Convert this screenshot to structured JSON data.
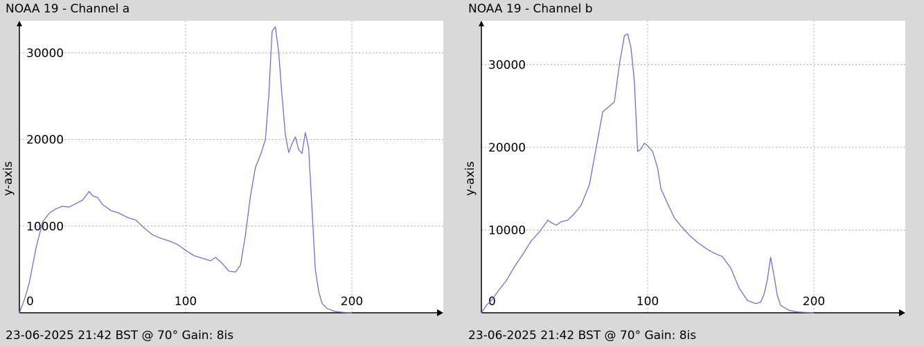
{
  "chart_data": [
    {
      "type": "line",
      "title": "NOAA 19 - Channel a",
      "footer": "23-06-2025 21:42 BST @ 70° Gain: 8",
      "footer_suffix": "is",
      "ylabel": "y-axis",
      "xlabel": "",
      "xlim": [
        0,
        255
      ],
      "ylim": [
        0,
        33700
      ],
      "grid": true,
      "xticks": [
        0,
        100,
        200
      ],
      "yticks": [
        10000,
        20000,
        30000
      ],
      "xtick_labels": [
        "0",
        "100",
        "200"
      ],
      "ytick_labels": [
        "10000",
        "20000",
        "30000"
      ],
      "color": "#6f6fd8",
      "series": [
        {
          "x": [
            0,
            3,
            6,
            10,
            14,
            18,
            22,
            26,
            30,
            34,
            38,
            42,
            44,
            47,
            50,
            55,
            60,
            65,
            70,
            75,
            80,
            85,
            90,
            95,
            100,
            105,
            110,
            115,
            118,
            122,
            126,
            130,
            133,
            136,
            139,
            142,
            145,
            148,
            150,
            152,
            154,
            156,
            158,
            160,
            162,
            164,
            166,
            168,
            170,
            172,
            174,
            176,
            178,
            180,
            182,
            185,
            190,
            195,
            200
          ],
          "y": [
            0,
            1500,
            3500,
            7500,
            10500,
            11500,
            12000,
            12300,
            12200,
            12600,
            13000,
            14000,
            13500,
            13300,
            12500,
            11800,
            11500,
            11000,
            10700,
            9800,
            9000,
            8600,
            8300,
            7900,
            7200,
            6600,
            6300,
            6000,
            6400,
            5700,
            4800,
            4700,
            5500,
            9000,
            13500,
            16800,
            18200,
            20000,
            25000,
            32500,
            33000,
            30000,
            25000,
            20500,
            18500,
            19500,
            20300,
            18800,
            18400,
            20800,
            19000,
            12000,
            5000,
            2500,
            1100,
            500,
            150,
            50,
            0
          ]
        }
      ]
    },
    {
      "type": "line",
      "title": "NOAA 19 - Channel b",
      "footer": "23-06-2025 21:42 BST @ 70° Gain: 8",
      "footer_suffix": "is",
      "ylabel": "y-axis",
      "xlabel": "",
      "xlim": [
        0,
        255
      ],
      "ylim": [
        0,
        35300
      ],
      "grid": true,
      "xticks": [
        0,
        100,
        200
      ],
      "yticks": [
        10000,
        20000,
        30000
      ],
      "xtick_labels": [
        "0",
        "100",
        "200"
      ],
      "ytick_labels": [
        "10000",
        "20000",
        "30000"
      ],
      "color": "#6f6fd8",
      "series": [
        {
          "x": [
            0,
            3,
            6,
            10,
            15,
            20,
            25,
            30,
            35,
            40,
            42,
            45,
            48,
            52,
            56,
            60,
            65,
            70,
            73,
            76,
            80,
            83,
            86,
            88,
            90,
            92,
            94,
            96,
            98,
            100,
            103,
            106,
            108,
            112,
            116,
            120,
            125,
            130,
            135,
            140,
            145,
            150,
            155,
            160,
            165,
            168,
            170,
            172,
            174,
            176,
            178,
            180,
            185,
            190,
            200
          ],
          "y": [
            0,
            900,
            1500,
            2600,
            3900,
            5600,
            7100,
            8700,
            9800,
            11200,
            10900,
            10600,
            11000,
            11200,
            12000,
            13000,
            15500,
            21000,
            24300,
            24800,
            25500,
            30000,
            33500,
            33700,
            32000,
            28000,
            19500,
            19800,
            20500,
            20200,
            19500,
            17500,
            15000,
            13200,
            11500,
            10500,
            9400,
            8500,
            7800,
            7200,
            6800,
            5400,
            3000,
            1500,
            1100,
            1300,
            2200,
            4000,
            6700,
            4500,
            2100,
            900,
            300,
            100,
            0
          ]
        }
      ]
    }
  ]
}
